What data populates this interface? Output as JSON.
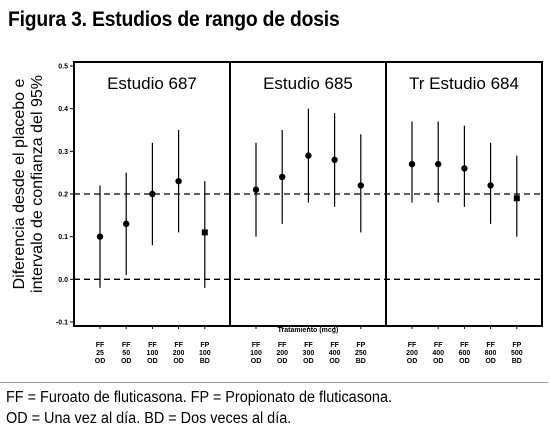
{
  "figure_title": "Figura 3. Estudios de rango de dosis",
  "footnotes": [
    "FF = Furoato de fluticasona. FP = Propionato de fluticasona.",
    "OD = Una vez al día. BD = Dos veces al día."
  ],
  "chart_data": {
    "type": "scatter",
    "subtype": "point-with-error-bars",
    "ylabel_lines": [
      "Diferencia desde el placebo e",
      "intervalo de confianza del 95%"
    ],
    "xlabel": "Tratamiento (mcg)",
    "ylim": [
      -0.1,
      0.5
    ],
    "yticks": [
      -0.1,
      0.0,
      0.1,
      0.2,
      0.3,
      0.4,
      0.5
    ],
    "ytick_labels": [
      "-0.1",
      "0.0",
      "0.1",
      "0.2",
      "0.3",
      "0.4",
      "0.5"
    ],
    "reference_lines": [
      0.0,
      0.2
    ],
    "grid": false,
    "panels": [
      {
        "title": "Estudio 687",
        "categories": [
          [
            "FF",
            "25",
            "OD"
          ],
          [
            "FF",
            "50",
            "OD"
          ],
          [
            "FF",
            "100",
            "OD"
          ],
          [
            "FF",
            "200",
            "OD"
          ],
          [
            "FP",
            "100",
            "BD"
          ]
        ],
        "points": [
          {
            "y": 0.1,
            "low": -0.02,
            "high": 0.22,
            "marker": "circle"
          },
          {
            "y": 0.13,
            "low": 0.01,
            "high": 0.25,
            "marker": "circle"
          },
          {
            "y": 0.2,
            "low": 0.08,
            "high": 0.32,
            "marker": "circle"
          },
          {
            "y": 0.23,
            "low": 0.11,
            "high": 0.35,
            "marker": "circle"
          },
          {
            "y": 0.11,
            "low": -0.02,
            "high": 0.23,
            "marker": "square"
          }
        ]
      },
      {
        "title": "Estudio 685",
        "categories": [
          [
            "FF",
            "100",
            "OD"
          ],
          [
            "FF",
            "200",
            "OD"
          ],
          [
            "FF",
            "300",
            "OD"
          ],
          [
            "FF",
            "400",
            "OD"
          ],
          [
            "FP",
            "250",
            "BD"
          ]
        ],
        "points": [
          {
            "y": 0.21,
            "low": 0.1,
            "high": 0.32,
            "marker": "circle"
          },
          {
            "y": 0.24,
            "low": 0.13,
            "high": 0.35,
            "marker": "circle"
          },
          {
            "y": 0.29,
            "low": 0.18,
            "high": 0.4,
            "marker": "circle"
          },
          {
            "y": 0.28,
            "low": 0.17,
            "high": 0.39,
            "marker": "circle"
          },
          {
            "y": 0.22,
            "low": 0.11,
            "high": 0.34,
            "marker": "circle"
          }
        ]
      },
      {
        "title": "Tr Estudio 684",
        "categories": [
          [
            "FF",
            "200",
            "OD"
          ],
          [
            "FF",
            "400",
            "OD"
          ],
          [
            "FF",
            "600",
            "OD"
          ],
          [
            "FF",
            "800",
            "OD"
          ],
          [
            "FP",
            "500",
            "BD"
          ]
        ],
        "points": [
          {
            "y": 0.27,
            "low": 0.18,
            "high": 0.37,
            "marker": "circle"
          },
          {
            "y": 0.27,
            "low": 0.18,
            "high": 0.37,
            "marker": "circle"
          },
          {
            "y": 0.26,
            "low": 0.17,
            "high": 0.36,
            "marker": "circle"
          },
          {
            "y": 0.22,
            "low": 0.13,
            "high": 0.32,
            "marker": "circle"
          },
          {
            "y": 0.19,
            "low": 0.1,
            "high": 0.29,
            "marker": "square"
          }
        ]
      }
    ]
  }
}
